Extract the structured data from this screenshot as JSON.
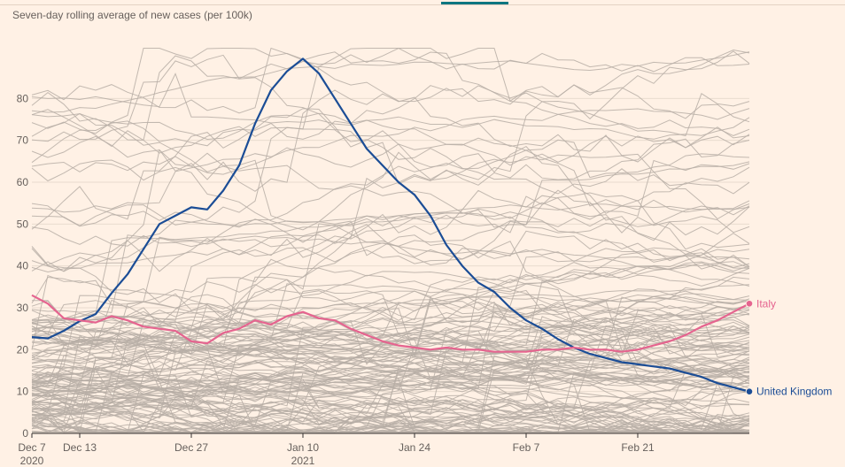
{
  "subtitle": "Seven-day rolling average of new cases (per 100k)",
  "colors": {
    "background": "#fff1e5",
    "grid": "#e9dccf",
    "axis": "#33302e",
    "text": "#66605c",
    "other_countries": "#b7aea6",
    "united_kingdom": "#1b4d96",
    "italy": "#e5648f"
  },
  "chart_data": {
    "type": "line",
    "title": "Seven-day rolling average of new cases (per 100k)",
    "xlabel": "",
    "ylabel": "",
    "x_range": [
      "2020-12-07",
      "2021-03-07"
    ],
    "ylim": [
      0,
      90
    ],
    "y_ticks": [
      0,
      10,
      20,
      30,
      40,
      50,
      60,
      70,
      80
    ],
    "x_ticks": [
      {
        "date": "2020-12-07",
        "label": "Dec 7",
        "sublabel": "2020"
      },
      {
        "date": "2020-12-13",
        "label": "Dec 13",
        "sublabel": ""
      },
      {
        "date": "2020-12-27",
        "label": "Dec 27",
        "sublabel": ""
      },
      {
        "date": "2021-01-10",
        "label": "Jan 10",
        "sublabel": "2021"
      },
      {
        "date": "2021-01-24",
        "label": "Jan 24",
        "sublabel": ""
      },
      {
        "date": "2021-02-07",
        "label": "Feb 7",
        "sublabel": ""
      },
      {
        "date": "2021-02-21",
        "label": "Feb 21",
        "sublabel": ""
      }
    ],
    "grid": "horizontal",
    "series": [
      {
        "name": "United Kingdom",
        "highlight": true,
        "x": [
          "2020-12-07",
          "2020-12-09",
          "2020-12-11",
          "2020-12-13",
          "2020-12-15",
          "2020-12-17",
          "2020-12-19",
          "2020-12-21",
          "2020-12-23",
          "2020-12-25",
          "2020-12-27",
          "2020-12-29",
          "2020-12-31",
          "2021-01-02",
          "2021-01-04",
          "2021-01-06",
          "2021-01-08",
          "2021-01-10",
          "2021-01-12",
          "2021-01-14",
          "2021-01-16",
          "2021-01-18",
          "2021-01-20",
          "2021-01-22",
          "2021-01-24",
          "2021-01-26",
          "2021-01-28",
          "2021-01-30",
          "2021-02-01",
          "2021-02-03",
          "2021-02-05",
          "2021-02-07",
          "2021-02-09",
          "2021-02-11",
          "2021-02-13",
          "2021-02-15",
          "2021-02-17",
          "2021-02-19",
          "2021-02-21",
          "2021-02-23",
          "2021-02-25",
          "2021-02-27",
          "2021-03-01",
          "2021-03-03",
          "2021-03-05",
          "2021-03-07"
        ],
        "values": [
          23,
          22.7,
          24.5,
          26.8,
          28.5,
          33.5,
          38,
          44,
          50,
          52,
          54,
          53.5,
          58,
          64,
          74,
          82,
          86.5,
          89.5,
          86,
          80,
          74,
          68,
          64,
          60,
          57,
          52,
          45,
          40,
          36,
          33.8,
          30,
          27,
          25,
          22.5,
          20.5,
          19,
          18,
          17,
          16.5,
          16,
          15.5,
          14.5,
          13.5,
          12,
          11,
          10
        ]
      },
      {
        "name": "Italy",
        "highlight": true,
        "x": [
          "2020-12-07",
          "2020-12-09",
          "2020-12-11",
          "2020-12-13",
          "2020-12-15",
          "2020-12-17",
          "2020-12-19",
          "2020-12-21",
          "2020-12-23",
          "2020-12-25",
          "2020-12-27",
          "2020-12-29",
          "2020-12-31",
          "2021-01-02",
          "2021-01-04",
          "2021-01-06",
          "2021-01-08",
          "2021-01-10",
          "2021-01-12",
          "2021-01-14",
          "2021-01-16",
          "2021-01-18",
          "2021-01-20",
          "2021-01-22",
          "2021-01-24",
          "2021-01-26",
          "2021-01-28",
          "2021-01-30",
          "2021-02-01",
          "2021-02-03",
          "2021-02-05",
          "2021-02-07",
          "2021-02-09",
          "2021-02-11",
          "2021-02-13",
          "2021-02-15",
          "2021-02-17",
          "2021-02-19",
          "2021-02-21",
          "2021-02-23",
          "2021-02-25",
          "2021-02-27",
          "2021-03-01",
          "2021-03-03",
          "2021-03-05",
          "2021-03-07"
        ],
        "values": [
          33,
          31,
          27.5,
          27,
          26.5,
          28,
          27,
          25.5,
          25,
          24.5,
          22,
          21.5,
          24,
          25,
          27,
          26,
          28,
          29,
          27.5,
          27,
          25,
          23.5,
          22,
          21,
          20.5,
          20,
          20.5,
          20,
          20,
          19.5,
          19.5,
          19.5,
          20,
          20,
          20.5,
          20,
          20,
          19.5,
          20,
          21,
          22,
          23.5,
          25.5,
          27,
          29,
          31
        ]
      }
    ]
  }
}
